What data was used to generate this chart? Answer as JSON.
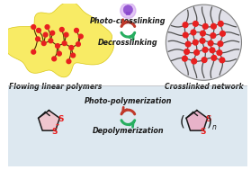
{
  "bg_color": "#ffffff",
  "bottom_bg": "#dde8f0",
  "yellow_blob_color": "#f7e84a",
  "yellow_blob_alpha": 0.85,
  "network_node_color": "#e82020",
  "polymer_branch_color": "#4a3000",
  "red_dot_color": "#e82020",
  "arrow_up_color": "#c0392b",
  "arrow_down_color": "#27ae60",
  "label_color": "#1a1a1a",
  "text_photo_cross": "Photo-crosslinking",
  "text_decross": "Decrosslinking",
  "text_photo_poly": "Photo-polymerization",
  "text_depoly": "Depolymerization",
  "text_flowing": "Flowing linear polymers",
  "text_network": "Crosslinked network",
  "lightbulb_color": "#8844cc",
  "lightbulb_glow": "#cc99ee",
  "title_fontsize": 5.8,
  "label_fontsize": 5.5,
  "sulfur_color": "#e82020",
  "pink_mono": "#f8b8c0",
  "pink_poly": "#f090b0",
  "net_bg": "#e0e0e8",
  "net_line": "#505050",
  "border_color": "#bbbbbb"
}
